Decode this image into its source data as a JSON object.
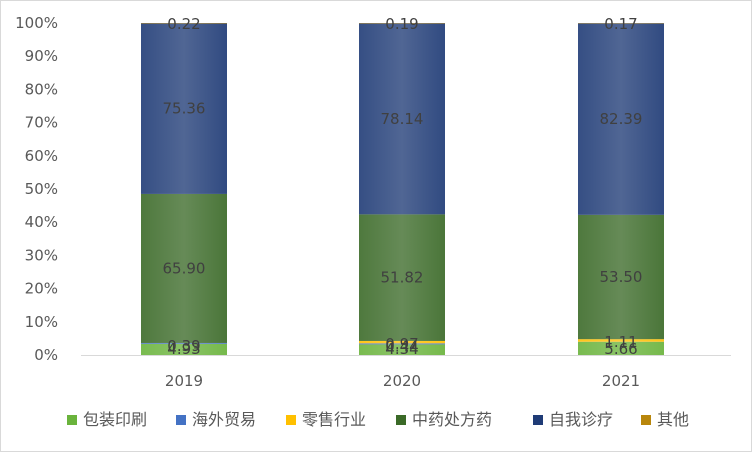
{
  "chart_data": {
    "type": "bar",
    "stacked": true,
    "normalized": true,
    "categories": [
      "2019",
      "2020",
      "2021"
    ],
    "y_ticks": [
      "0%",
      "10%",
      "20%",
      "30%",
      "40%",
      "50%",
      "60%",
      "70%",
      "80%",
      "90%",
      "100%"
    ],
    "ylim": [
      0,
      100
    ],
    "grid": false,
    "legend_position": "bottom",
    "series": [
      {
        "name": "包装印刷",
        "color": "#6ab33c",
        "values": [
          4.93,
          4.34,
          5.66
        ],
        "labels": [
          "4.93",
          "4.34",
          "5.66"
        ]
      },
      {
        "name": "海外贸易",
        "color": "#4472c4",
        "values": [
          0.39,
          0.44,
          0.05
        ],
        "labels": [
          "0.39",
          "0.44",
          ""
        ]
      },
      {
        "name": "零售行业",
        "color": "#ffc000",
        "values": [
          0.0,
          0.97,
          1.11
        ],
        "labels": [
          "",
          "0.97",
          "1.11"
        ]
      },
      {
        "name": "中药处方药",
        "color": "#3b6a28",
        "values": [
          65.9,
          51.82,
          53.5
        ],
        "labels": [
          "65.90",
          "51.82",
          "53.50"
        ]
      },
      {
        "name": "自我诊疗",
        "color": "#1f3b76",
        "values": [
          75.36,
          78.14,
          82.39
        ],
        "labels": [
          "75.36",
          "78.14",
          "82.39"
        ]
      },
      {
        "name": "其他",
        "color": "#b8860b",
        "values": [
          0.22,
          0.19,
          0.17
        ],
        "labels": [
          "0.22",
          "0.19",
          "0.17"
        ]
      }
    ]
  }
}
